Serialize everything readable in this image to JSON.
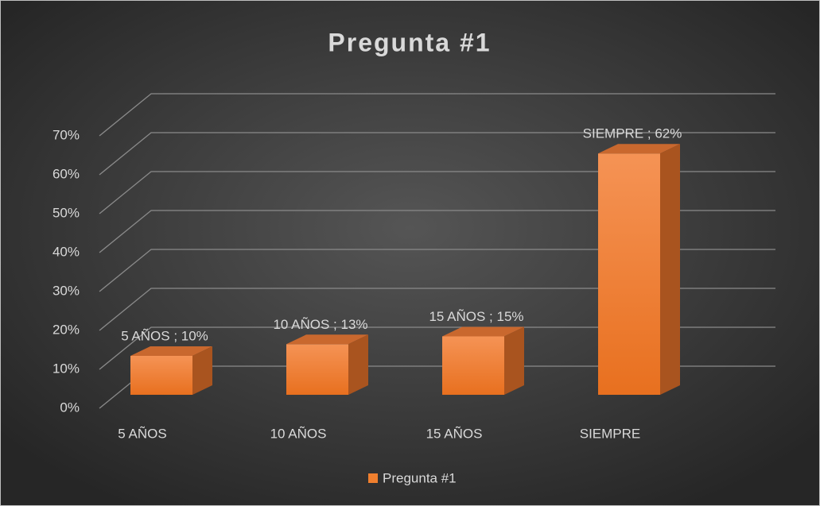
{
  "chart_data": {
    "type": "bar3d",
    "title": "Pregunta #1",
    "categories": [
      "5 AÑOS",
      "10 AÑOS",
      "15 AÑOS",
      "SIEMPRE"
    ],
    "series": [
      {
        "name": "Pregunta #1",
        "color": "#f07f2e",
        "values": [
          10,
          13,
          15,
          62
        ],
        "value_labels": [
          "5 AÑOS ; 10%",
          "10 AÑOS ; 13%",
          "15 AÑOS ; 15%",
          "SIEMPRE ; 62%"
        ]
      }
    ],
    "ylim": [
      0,
      70
    ],
    "yticks": [
      {
        "value": 0,
        "label": "0%"
      },
      {
        "value": 10,
        "label": "10%"
      },
      {
        "value": 20,
        "label": "20%"
      },
      {
        "value": 30,
        "label": "30%"
      },
      {
        "value": 40,
        "label": "40%"
      },
      {
        "value": 50,
        "label": "50%"
      },
      {
        "value": 60,
        "label": "60%"
      },
      {
        "value": 70,
        "label": "70%"
      }
    ],
    "grid": true,
    "legend": "bottom"
  }
}
